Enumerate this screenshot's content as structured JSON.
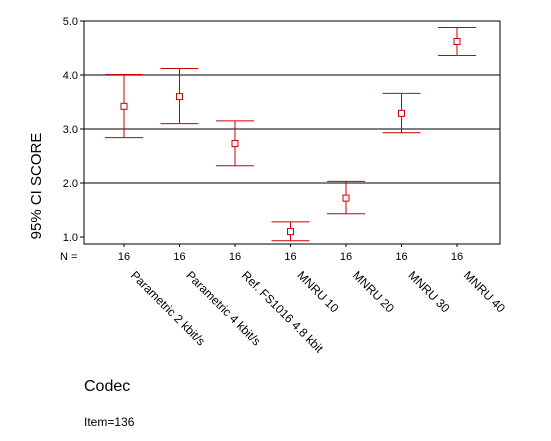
{
  "chart_data": {
    "type": "errorbar",
    "ylabel": "95% CI SCORE",
    "xlabel": "Codec",
    "n_label": "N =",
    "footnote": "Item=136",
    "ylim": [
      1.0,
      5.0
    ],
    "yticks": [
      1.0,
      2.0,
      3.0,
      4.0,
      5.0
    ],
    "ytick_labels": [
      "1.0",
      "2.0",
      "3.0",
      "4.0",
      "5.0"
    ],
    "grid": "horizontal",
    "color": "#cc0000",
    "categories": [
      "Parametric 2 kbit/s",
      "Parametric 4 kbit/s",
      "Ref. FS1016 4.8 kbit",
      "MNRU 10",
      "MNRU 20",
      "MNRU 30",
      "MNRU 40"
    ],
    "n": [
      "16",
      "16",
      "16",
      "16",
      "16",
      "16",
      "16"
    ],
    "series": [
      {
        "mean": [
          3.42,
          3.6,
          2.73,
          1.1,
          1.72,
          3.29,
          4.62
        ],
        "lower": [
          2.84,
          3.1,
          2.32,
          0.93,
          1.43,
          2.93,
          4.36
        ],
        "upper": [
          4.01,
          4.12,
          3.15,
          1.28,
          2.03,
          3.66,
          4.88
        ]
      }
    ]
  }
}
